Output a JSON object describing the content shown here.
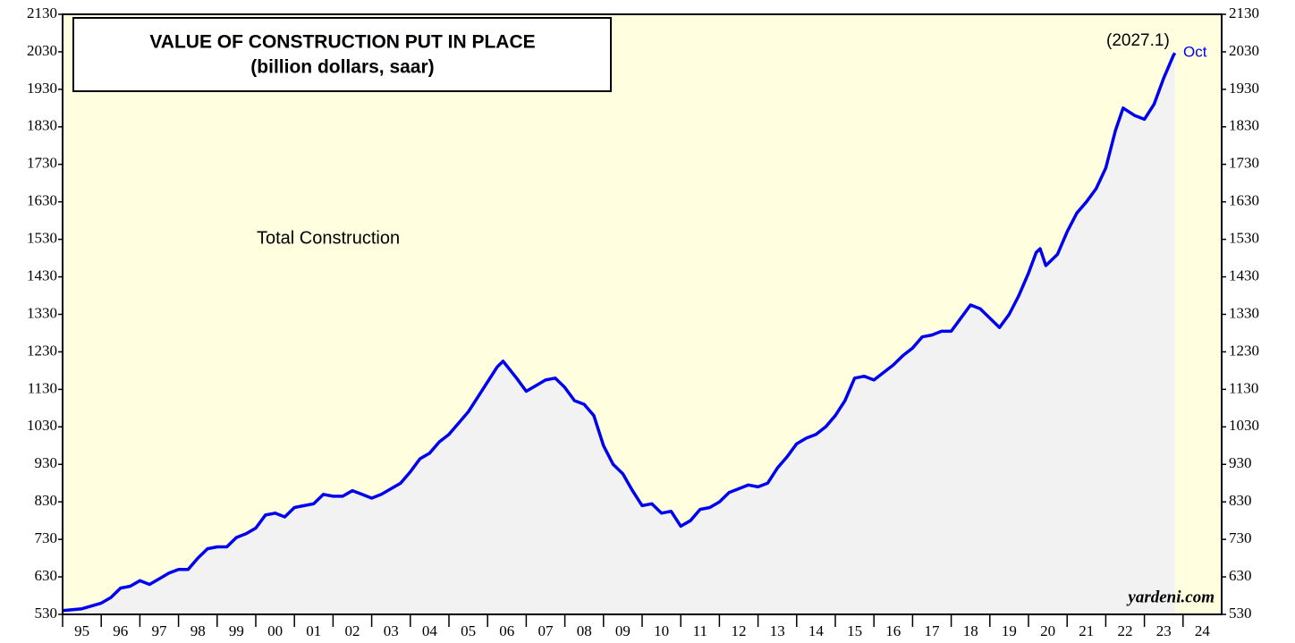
{
  "chart_data": {
    "type": "line",
    "title": "VALUE OF CONSTRUCTION PUT IN PLACE",
    "subtitle": "(billion dollars, saar)",
    "annotations": [
      "Total Construction",
      "(2027.1)",
      "Oct",
      "yardeni.com"
    ],
    "x": [
      1995.0,
      1995.5,
      1996.0,
      1996.25,
      1996.5,
      1996.75,
      1997.0,
      1997.25,
      1997.5,
      1997.75,
      1998.0,
      1998.25,
      1998.5,
      1998.75,
      1999.0,
      1999.25,
      1999.5,
      1999.75,
      2000.0,
      2000.25,
      2000.5,
      2000.75,
      2001.0,
      2001.25,
      2001.5,
      2001.75,
      2002.0,
      2002.25,
      2002.5,
      2002.75,
      2003.0,
      2003.25,
      2003.5,
      2003.75,
      2004.0,
      2004.25,
      2004.5,
      2004.75,
      2005.0,
      2005.25,
      2005.5,
      2005.75,
      2006.0,
      2006.25,
      2006.4,
      2006.75,
      2007.0,
      2007.25,
      2007.5,
      2007.75,
      2008.0,
      2008.25,
      2008.5,
      2008.75,
      2009.0,
      2009.25,
      2009.5,
      2009.75,
      2010.0,
      2010.25,
      2010.5,
      2010.75,
      2011.0,
      2011.25,
      2011.5,
      2011.75,
      2012.0,
      2012.25,
      2012.5,
      2012.75,
      2013.0,
      2013.25,
      2013.5,
      2013.75,
      2014.0,
      2014.25,
      2014.5,
      2014.75,
      2015.0,
      2015.25,
      2015.5,
      2015.75,
      2016.0,
      2016.25,
      2016.5,
      2016.75,
      2017.0,
      2017.25,
      2017.5,
      2017.75,
      2018.0,
      2018.25,
      2018.5,
      2018.75,
      2019.0,
      2019.25,
      2019.5,
      2019.75,
      2020.0,
      2020.2,
      2020.3,
      2020.45,
      2020.75,
      2021.0,
      2021.25,
      2021.5,
      2021.75,
      2022.0,
      2022.25,
      2022.45,
      2022.75,
      2023.0,
      2023.25,
      2023.5,
      2023.75,
      2023.79
    ],
    "series": [
      {
        "name": "Total Construction",
        "color": "#0000ee",
        "values": [
          540,
          545,
          560,
          575,
          600,
          605,
          620,
          610,
          625,
          640,
          650,
          650,
          680,
          705,
          710,
          710,
          735,
          745,
          760,
          795,
          800,
          790,
          815,
          820,
          825,
          850,
          845,
          845,
          860,
          850,
          840,
          850,
          865,
          880,
          910,
          945,
          960,
          990,
          1010,
          1040,
          1070,
          1110,
          1150,
          1190,
          1205,
          1160,
          1125,
          1140,
          1155,
          1160,
          1135,
          1100,
          1090,
          1060,
          980,
          930,
          905,
          860,
          820,
          825,
          800,
          805,
          765,
          780,
          810,
          815,
          830,
          855,
          865,
          875,
          870,
          880,
          920,
          950,
          985,
          1000,
          1010,
          1030,
          1060,
          1100,
          1160,
          1165,
          1155,
          1175,
          1195,
          1220,
          1240,
          1270,
          1275,
          1285,
          1285,
          1320,
          1355,
          1345,
          1320,
          1295,
          1330,
          1380,
          1440,
          1495,
          1505,
          1460,
          1490,
          1550,
          1600,
          1630,
          1665,
          1720,
          1820,
          1880,
          1860,
          1850,
          1890,
          1960,
          2020,
          2027.1
        ]
      }
    ],
    "xlim": [
      1995,
      2025
    ],
    "xticks": [
      {
        "value": 1995,
        "label": "95"
      },
      {
        "value": 1996,
        "label": "96"
      },
      {
        "value": 1997,
        "label": "97"
      },
      {
        "value": 1998,
        "label": "98"
      },
      {
        "value": 1999,
        "label": "99"
      },
      {
        "value": 2000,
        "label": "00"
      },
      {
        "value": 2001,
        "label": "01"
      },
      {
        "value": 2002,
        "label": "02"
      },
      {
        "value": 2003,
        "label": "03"
      },
      {
        "value": 2004,
        "label": "04"
      },
      {
        "value": 2005,
        "label": "05"
      },
      {
        "value": 2006,
        "label": "06"
      },
      {
        "value": 2007,
        "label": "07"
      },
      {
        "value": 2008,
        "label": "08"
      },
      {
        "value": 2009,
        "label": "09"
      },
      {
        "value": 2010,
        "label": "10"
      },
      {
        "value": 2011,
        "label": "11"
      },
      {
        "value": 2012,
        "label": "12"
      },
      {
        "value": 2013,
        "label": "13"
      },
      {
        "value": 2014,
        "label": "14"
      },
      {
        "value": 2015,
        "label": "15"
      },
      {
        "value": 2016,
        "label": "16"
      },
      {
        "value": 2017,
        "label": "17"
      },
      {
        "value": 2018,
        "label": "18"
      },
      {
        "value": 2019,
        "label": "19"
      },
      {
        "value": 2020,
        "label": "20"
      },
      {
        "value": 2021,
        "label": "21"
      },
      {
        "value": 2022,
        "label": "22"
      },
      {
        "value": 2023,
        "label": "23"
      },
      {
        "value": 2024,
        "label": "24"
      }
    ],
    "ylim": [
      530,
      2130
    ],
    "yticks": [
      530,
      630,
      730,
      830,
      930,
      1030,
      1130,
      1230,
      1330,
      1430,
      1530,
      1630,
      1730,
      1830,
      1930,
      2030,
      2130
    ],
    "area_color": "#f2f2f2",
    "background": "#ffffe0",
    "grid": false
  }
}
